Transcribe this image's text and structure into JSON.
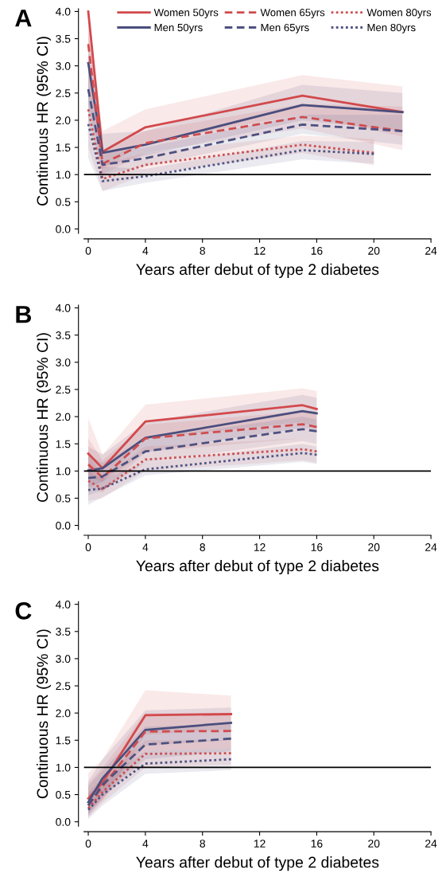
{
  "chart_data": [
    {
      "type": "line",
      "title": "A",
      "xlabel": "Years after debut of type 2 diabetes",
      "ylabel": "Continuous HR (95% CI)",
      "xlim": [
        -0.3,
        24
      ],
      "xticks": [
        0,
        4,
        8,
        12,
        16,
        20,
        24
      ],
      "ylim": [
        -0.08,
        4.05
      ],
      "yticks": [
        {
          "value": 0,
          "label": "0.0"
        },
        {
          "value": 0.5,
          "label": "0.5"
        },
        {
          "value": 1,
          "label": "1.0"
        },
        {
          "value": 1.5,
          "label": "1.5"
        },
        {
          "value": 2,
          "label": "2.0"
        },
        {
          "value": 2.5,
          "label": "2.5"
        },
        {
          "value": 3,
          "label": "3.0"
        },
        {
          "value": 3.5,
          "label": "3.5"
        },
        {
          "value": 4,
          "label": "4.0"
        }
      ],
      "grid": false,
      "legend": "top",
      "ref_lines": [
        {
          "axis": "y",
          "value": 1,
          "color": "#000000"
        }
      ],
      "series": [
        {
          "name": "Women 50yrs",
          "color": "#d2494c",
          "line_style": "solid",
          "x": [
            0,
            1,
            4,
            15,
            22
          ],
          "values": [
            4.0,
            1.42,
            1.87,
            2.45,
            2.15
          ],
          "lower": [
            3.0,
            1.1,
            1.6,
            2.1,
            1.7
          ],
          "upper": [
            4.0,
            1.8,
            2.2,
            2.83,
            2.62
          ]
        },
        {
          "name": "Men 50yrs",
          "color": "#4a4e7d",
          "line_style": "solid",
          "x": [
            0,
            1,
            4,
            15,
            22
          ],
          "values": [
            3.05,
            1.4,
            1.55,
            2.28,
            2.15
          ],
          "lower": [
            2.3,
            1.15,
            1.35,
            2.0,
            1.8
          ],
          "upper": [
            3.6,
            1.75,
            1.8,
            2.65,
            2.5
          ]
        },
        {
          "name": "Women 65yrs",
          "color": "#cf4c4f",
          "line_style": "dashed",
          "x": [
            0,
            1,
            4,
            15,
            22
          ],
          "values": [
            3.4,
            1.2,
            1.58,
            2.06,
            1.8
          ],
          "lower": [
            2.6,
            1.0,
            1.4,
            1.85,
            1.45
          ],
          "upper": [
            4.0,
            1.45,
            1.8,
            2.3,
            2.25
          ]
        },
        {
          "name": "Men 65yrs",
          "color": "#4d5180",
          "line_style": "dashed",
          "x": [
            0,
            1,
            4,
            15,
            22
          ],
          "values": [
            2.57,
            1.18,
            1.3,
            1.92,
            1.8
          ],
          "lower": [
            2.0,
            1.0,
            1.15,
            1.75,
            1.55
          ],
          "upper": [
            3.2,
            1.4,
            1.5,
            2.1,
            2.1
          ]
        },
        {
          "name": "Women 80yrs",
          "color": "#cc4f52",
          "line_style": "dotted",
          "x": [
            0,
            1,
            4,
            15,
            20
          ],
          "values": [
            2.2,
            0.92,
            1.18,
            1.55,
            1.4
          ],
          "lower": [
            1.5,
            0.7,
            1.0,
            1.4,
            1.17
          ],
          "upper": [
            3.0,
            1.2,
            1.4,
            1.72,
            1.65
          ]
        },
        {
          "name": "Men 80yrs",
          "color": "#505483",
          "line_style": "dotted",
          "x": [
            0,
            1,
            4,
            15,
            20
          ],
          "values": [
            1.93,
            0.88,
            0.97,
            1.45,
            1.38
          ],
          "lower": [
            1.3,
            0.7,
            0.85,
            1.28,
            1.2
          ],
          "upper": [
            2.6,
            1.15,
            1.1,
            1.62,
            1.6
          ]
        }
      ]
    },
    {
      "type": "line",
      "title": "B",
      "xlabel": "Years after debut of type 2 diabetes",
      "ylabel": "Continuous HR (95% CI)",
      "xlim": [
        -0.3,
        24
      ],
      "xticks": [
        0,
        4,
        8,
        12,
        16,
        20,
        24
      ],
      "ylim": [
        -0.08,
        4.05
      ],
      "yticks": [
        {
          "value": 0,
          "label": "0.0"
        },
        {
          "value": 0.5,
          "label": "0.5"
        },
        {
          "value": 1,
          "label": "1.0"
        },
        {
          "value": 1.5,
          "label": "1.5"
        },
        {
          "value": 2,
          "label": "2.0"
        },
        {
          "value": 2.5,
          "label": "2.5"
        },
        {
          "value": 3,
          "label": "3.0"
        },
        {
          "value": 3.5,
          "label": "3.5"
        },
        {
          "value": 4,
          "label": "4.0"
        }
      ],
      "grid": false,
      "ref_lines": [
        {
          "axis": "y",
          "value": 1,
          "color": "#000000"
        }
      ],
      "series": [
        {
          "color": "#d2494c",
          "line_style": "solid",
          "x": [
            0,
            1,
            4,
            15,
            16
          ],
          "values": [
            1.32,
            1.05,
            1.91,
            2.21,
            2.14
          ],
          "lower": [
            0.9,
            0.8,
            1.6,
            1.9,
            1.8
          ],
          "upper": [
            1.97,
            1.3,
            2.22,
            2.52,
            2.47
          ]
        },
        {
          "color": "#4a4e7d",
          "line_style": "solid",
          "x": [
            0,
            1,
            4,
            15,
            16
          ],
          "values": [
            1.01,
            1.05,
            1.61,
            2.1,
            2.06
          ],
          "lower": [
            0.7,
            0.8,
            1.35,
            1.8,
            1.75
          ],
          "upper": [
            1.45,
            1.3,
            1.9,
            2.4,
            2.35
          ]
        },
        {
          "color": "#cf4c4f",
          "line_style": "dashed",
          "x": [
            0,
            1,
            4,
            15,
            16
          ],
          "values": [
            1.12,
            0.88,
            1.6,
            1.86,
            1.81
          ],
          "lower": [
            0.7,
            0.6,
            1.35,
            1.6,
            1.55
          ],
          "upper": [
            1.6,
            1.2,
            1.85,
            2.1,
            2.1
          ]
        },
        {
          "color": "#4d5180",
          "line_style": "dashed",
          "x": [
            0,
            1,
            4,
            15,
            16
          ],
          "values": [
            0.87,
            0.9,
            1.36,
            1.77,
            1.73
          ],
          "lower": [
            0.55,
            0.65,
            1.15,
            1.55,
            1.5
          ],
          "upper": [
            1.3,
            1.15,
            1.6,
            2.0,
            1.95
          ]
        },
        {
          "color": "#cc4f52",
          "line_style": "dotted",
          "x": [
            0,
            1,
            4,
            15,
            16
          ],
          "values": [
            0.82,
            0.67,
            1.21,
            1.4,
            1.36
          ],
          "lower": [
            0.45,
            0.5,
            1.0,
            1.2,
            1.15
          ],
          "upper": [
            1.3,
            0.9,
            1.45,
            1.6,
            1.55
          ]
        },
        {
          "color": "#505483",
          "line_style": "dotted",
          "x": [
            0,
            1,
            4,
            15,
            16
          ],
          "values": [
            0.65,
            0.68,
            1.03,
            1.33,
            1.3
          ],
          "lower": [
            0.38,
            0.52,
            0.92,
            1.17,
            1.13
          ],
          "upper": [
            1.0,
            0.85,
            1.15,
            1.5,
            1.45
          ]
        }
      ]
    },
    {
      "type": "line",
      "title": "C",
      "xlabel": "Years after debut of type 2 diabetes",
      "ylabel": "Continuous HR (95% CI)",
      "xlim": [
        -0.3,
        24
      ],
      "xticks": [
        0,
        4,
        8,
        12,
        16,
        20,
        24
      ],
      "ylim": [
        -0.08,
        4.05
      ],
      "yticks": [
        {
          "value": 0,
          "label": "0.0"
        },
        {
          "value": 0.5,
          "label": "0.5"
        },
        {
          "value": 1,
          "label": "1.0"
        },
        {
          "value": 1.5,
          "label": "1.5"
        },
        {
          "value": 2,
          "label": "2.0"
        },
        {
          "value": 2.5,
          "label": "2.5"
        },
        {
          "value": 3,
          "label": "3.0"
        },
        {
          "value": 3.5,
          "label": "3.5"
        },
        {
          "value": 4,
          "label": "4.0"
        }
      ],
      "grid": false,
      "ref_lines": [
        {
          "axis": "y",
          "value": 1,
          "color": "#000000"
        }
      ],
      "series": [
        {
          "color": "#d2494c",
          "line_style": "solid",
          "x": [
            0,
            1,
            4,
            10
          ],
          "values": [
            0.43,
            0.72,
            1.96,
            1.98
          ],
          "lower": [
            0.2,
            0.4,
            1.6,
            1.7
          ],
          "upper": [
            0.9,
            1.15,
            2.42,
            2.32
          ]
        },
        {
          "color": "#4a4e7d",
          "line_style": "solid",
          "x": [
            0,
            1,
            4,
            10
          ],
          "values": [
            0.36,
            0.8,
            1.69,
            1.82
          ],
          "lower": [
            0.15,
            0.5,
            1.4,
            1.5
          ],
          "upper": [
            0.75,
            1.15,
            2.05,
            2.1
          ]
        },
        {
          "color": "#cf4c4f",
          "line_style": "dashed",
          "x": [
            0,
            1,
            4,
            10
          ],
          "values": [
            0.3,
            0.65,
            1.66,
            1.67
          ],
          "lower": [
            0.12,
            0.4,
            1.3,
            1.35
          ],
          "upper": [
            0.7,
            1.0,
            2.0,
            2.0
          ]
        },
        {
          "color": "#4d5180",
          "line_style": "dashed",
          "x": [
            0,
            1,
            4,
            10
          ],
          "values": [
            0.3,
            0.68,
            1.42,
            1.53
          ],
          "lower": [
            0.1,
            0.45,
            1.15,
            1.3
          ],
          "upper": [
            0.65,
            0.95,
            1.75,
            1.8
          ]
        },
        {
          "color": "#cc4f52",
          "line_style": "dotted",
          "x": [
            0,
            1,
            4,
            10
          ],
          "values": [
            0.25,
            0.55,
            1.25,
            1.26
          ],
          "lower": [
            0.08,
            0.35,
            1.0,
            1.05
          ],
          "upper": [
            0.55,
            0.8,
            1.5,
            1.5
          ]
        },
        {
          "color": "#505483",
          "line_style": "dotted",
          "x": [
            0,
            1,
            4,
            10
          ],
          "values": [
            0.22,
            0.5,
            1.07,
            1.15
          ],
          "lower": [
            0.05,
            0.3,
            0.88,
            0.95
          ],
          "upper": [
            0.5,
            0.75,
            1.3,
            1.35
          ]
        }
      ]
    }
  ]
}
